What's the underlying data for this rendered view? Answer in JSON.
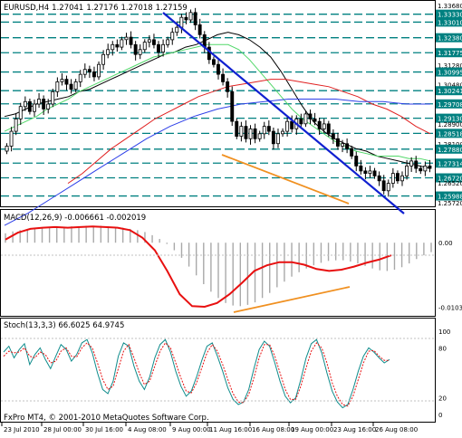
{
  "colors": {
    "background": "#ffffff",
    "bull_candle": "#ffffff",
    "bear_candle": "#000000",
    "ma_fast": "#000000",
    "ma_green": "#52d86a",
    "ma_red": "#e02020",
    "ma_blue": "#2c3ee8",
    "trendline_blue": "#1020d0",
    "trendline_orange": "#f09020",
    "level_line": "#008080",
    "macd_hist": "#a9a9a9",
    "macd_signal": "#e81010",
    "stoch_main": "#0f8c8c",
    "stoch_signal": "#e81010",
    "price_box": "#008080"
  },
  "chart_data": [
    {
      "type": "line",
      "title": "EURUSD,H4",
      "ohlc": {
        "open": "1.27041",
        "high": "1.27176",
        "low": "1.27018",
        "close": "1.27159"
      },
      "x_tick_labels": [
        "23 Jul 2010",
        "28 Jul 00:00",
        "30 Jul 16:00",
        "4 Aug 08:00",
        "9 Aug 00:00",
        "11 Aug 16:00",
        "16 Aug 08:00",
        "19 Aug 00:00",
        "23 Aug 16:00",
        "26 Aug 08:00"
      ],
      "y_axis_labels": [
        "1.33680",
        "1.33330",
        "1.33010",
        "1.32380",
        "1.31775",
        "1.31280",
        "1.30995",
        "1.30480",
        "1.30241",
        "1.29708",
        "1.29130",
        "1.28900",
        "1.28518",
        "1.28100",
        "1.27880",
        "1.27314",
        "1.26720",
        "1.26520",
        "1.25988",
        "1.25720"
      ],
      "level_lines": [
        1.3333,
        1.3301,
        1.3238,
        1.31775,
        1.30995,
        1.30241,
        1.29708,
        1.2913,
        1.28518,
        1.2788,
        1.27314,
        1.2672,
        1.25988
      ],
      "ylim": [
        1.2557,
        1.3383
      ],
      "close": [
        1.28,
        1.286,
        1.291,
        1.296,
        1.298,
        1.294,
        1.297,
        1.299,
        1.295,
        1.297,
        1.302,
        1.306,
        1.307,
        1.305,
        1.303,
        1.306,
        1.309,
        1.311,
        1.31,
        1.308,
        1.313,
        1.317,
        1.319,
        1.321,
        1.32,
        1.323,
        1.324,
        1.321,
        1.317,
        1.319,
        1.322,
        1.323,
        1.321,
        1.318,
        1.321,
        1.323,
        1.326,
        1.328,
        1.332,
        1.331,
        1.334,
        1.329,
        1.325,
        1.32,
        1.315,
        1.313,
        1.309,
        1.306,
        1.302,
        1.29,
        1.284,
        1.288,
        1.283,
        1.287,
        1.283,
        1.285,
        1.288,
        1.286,
        1.281,
        1.285,
        1.286,
        1.29,
        1.287,
        1.291,
        1.289,
        1.293,
        1.291,
        1.29,
        1.287,
        1.289,
        1.285,
        1.283,
        1.28,
        1.281,
        1.279,
        1.276,
        1.272,
        1.27,
        1.269,
        1.27,
        1.268,
        1.266,
        1.262,
        1.265,
        1.269,
        1.266,
        1.268,
        1.272,
        1.274,
        1.271,
        1.27,
        1.272,
        1.271
      ],
      "overlay_series": [
        {
          "values": [
            1.292,
            1.293,
            1.295,
            1.297,
            1.298,
            1.299,
            1.3,
            1.302,
            1.303,
            1.305,
            1.307,
            1.309,
            1.311,
            1.313,
            1.315,
            1.317,
            1.318,
            1.32,
            1.321,
            1.323,
            1.325,
            1.326,
            1.325,
            1.323,
            1.32,
            1.316,
            1.31,
            1.303,
            1.296,
            1.29,
            1.286,
            1.283,
            1.281,
            1.279,
            1.278,
            1.276,
            1.275,
            1.274,
            1.273,
            1.272,
            1.271
          ]
        },
        {
          "values": [
            1.286,
            1.288,
            1.29,
            1.292,
            1.295,
            1.297,
            1.299,
            1.302,
            1.304,
            1.306,
            1.308,
            1.31,
            1.312,
            1.314,
            1.316,
            1.317,
            1.318,
            1.319,
            1.32,
            1.321,
            1.321,
            1.321,
            1.319,
            1.315,
            1.31,
            1.305,
            1.3,
            1.295,
            1.291,
            1.288,
            1.285,
            1.282,
            1.28,
            1.278,
            1.277,
            1.276,
            1.276,
            1.276,
            1.275,
            1.275,
            1.274
          ]
        },
        {
          "values": [
            1.265,
            1.269,
            1.274,
            1.279,
            1.283,
            1.287,
            1.291,
            1.294,
            1.297,
            1.3,
            1.302,
            1.304,
            1.305,
            1.306,
            1.307,
            1.307,
            1.306,
            1.305,
            1.304,
            1.302,
            1.3,
            1.297,
            1.295,
            1.292,
            1.288,
            1.285
          ]
        },
        {
          "values": [
            1.248,
            1.253,
            1.259,
            1.265,
            1.271,
            1.277,
            1.283,
            1.288,
            1.292,
            1.295,
            1.297,
            1.298,
            1.299,
            1.299,
            1.299,
            1.298,
            1.298,
            1.297,
            1.297
          ]
        }
      ],
      "annotations": [
        "blue downtrend line from the 9 Aug high to the 26 Aug area",
        "orange support line from 11 Aug to 23 Aug lows"
      ]
    },
    {
      "type": "bar",
      "title": "MACD(12,26,9) -0.006661 -0.002019",
      "y_axis_labels": [
        "0.00",
        "-0.01030"
      ],
      "ylim": [
        -0.0115,
        0.0032
      ],
      "histogram": [
        0.0015,
        0.0018,
        0.002,
        0.0022,
        0.0023,
        0.0024,
        0.0024,
        0.0025,
        0.0025,
        0.0026,
        0.0026,
        0.0027,
        0.0027,
        0.0027,
        0.0026,
        0.0025,
        0.0024,
        0.0022,
        0.002,
        0.0017,
        0.0012,
        0.0006,
        -0.0002,
        -0.0012,
        -0.0024,
        -0.0038,
        -0.0052,
        -0.0066,
        -0.0078,
        -0.0088,
        -0.0096,
        -0.01,
        -0.0101,
        -0.0099,
        -0.0095,
        -0.0088,
        -0.008,
        -0.0071,
        -0.0062,
        -0.0054,
        -0.0047,
        -0.0041,
        -0.0036,
        -0.0032,
        -0.0029,
        -0.0028,
        -0.0028,
        -0.003,
        -0.0033,
        -0.0037,
        -0.0041,
        -0.0044,
        -0.0045,
        -0.0043,
        -0.0039,
        -0.0033,
        -0.0026,
        -0.002,
        -0.0015
      ],
      "signal": [
        0.0005,
        0.0016,
        0.0022,
        0.0024,
        0.0025,
        0.0024,
        0.0025,
        0.0026,
        0.0025,
        0.0024,
        0.002,
        0.0008,
        -0.0012,
        -0.0045,
        -0.0082,
        -0.0101,
        -0.0102,
        -0.0096,
        -0.0082,
        -0.0064,
        -0.0045,
        -0.0036,
        -0.0031,
        -0.0031,
        -0.0035,
        -0.0042,
        -0.0045,
        -0.0043,
        -0.0038,
        -0.0032,
        -0.0027,
        -0.002
      ],
      "annotations": [
        "orange divergence line from 11 Aug low to 23 Aug low"
      ]
    },
    {
      "type": "line",
      "title": "Stoch(13,3,3) 66.6025 64.9745",
      "y_axis_labels": [
        "100",
        "80",
        "20",
        "0"
      ],
      "ylim": [
        0,
        100
      ],
      "series": [
        {
          "values": [
            75,
            82,
            68,
            78,
            85,
            60,
            72,
            80,
            66,
            55,
            70,
            84,
            78,
            64,
            72,
            86,
            90,
            74,
            50,
            30,
            25,
            40,
            70,
            86,
            82,
            58,
            40,
            30,
            45,
            68,
            84,
            90,
            75,
            52,
            34,
            22,
            28,
            45,
            65,
            82,
            86,
            70,
            52,
            32,
            18,
            12,
            15,
            30,
            55,
            78,
            88,
            82,
            62,
            40,
            22,
            14,
            20,
            42,
            68,
            85,
            90,
            74,
            50,
            28,
            15,
            8,
            12,
            30,
            52,
            70,
            80,
            75,
            68,
            62,
            66
          ]
        },
        {
          "values": [
            70,
            76,
            74,
            75,
            80,
            70,
            68,
            75,
            72,
            62,
            64,
            76,
            80,
            70,
            69,
            80,
            86,
            80,
            62,
            42,
            30,
            34,
            55,
            76,
            84,
            68,
            50,
            36,
            40,
            58,
            76,
            86,
            80,
            62,
            44,
            28,
            26,
            38,
            56,
            74,
            84,
            76,
            60,
            42,
            25,
            15,
            14,
            24,
            44,
            68,
            84,
            84,
            70,
            50,
            30,
            18,
            18,
            34,
            56,
            76,
            86,
            80,
            62,
            38,
            22,
            12,
            10,
            22,
            42,
            62,
            76,
            77,
            70,
            65,
            65
          ]
        }
      ]
    }
  ],
  "footer": "FxPro MT4, © 2001-2010 MetaQuotes Software Corp."
}
